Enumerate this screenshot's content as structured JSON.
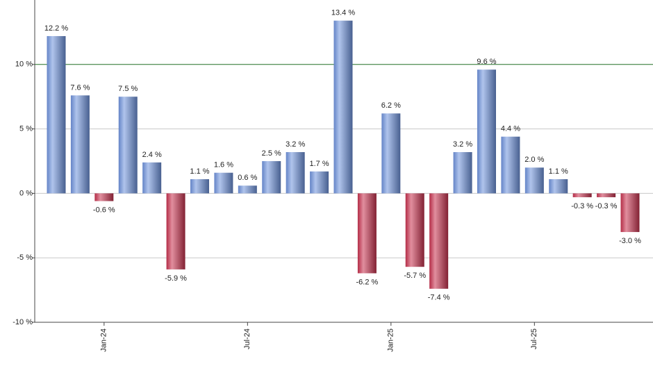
{
  "chart_data": {
    "type": "bar",
    "categories": [
      null,
      null,
      "Jan-24",
      null,
      null,
      null,
      null,
      null,
      "Jul-24",
      null,
      null,
      null,
      null,
      null,
      "Jan-25",
      null,
      null,
      null,
      null,
      null,
      "Jul-25",
      null,
      null,
      null,
      null
    ],
    "values": [
      12.2,
      7.6,
      -0.6,
      7.5,
      2.4,
      -5.9,
      1.1,
      1.6,
      0.6,
      2.5,
      3.2,
      1.7,
      13.4,
      -6.2,
      6.2,
      -5.7,
      -7.4,
      3.2,
      9.6,
      4.4,
      2.0,
      1.1,
      -0.3,
      -0.3,
      -3.0
    ],
    "value_labels": [
      "12.2 %",
      "7.6 %",
      "-0.6 %",
      "7.5 %",
      "2.4 %",
      "-5.9 %",
      "1.1 %",
      "1.6 %",
      "0.6 %",
      "2.5 %",
      "3.2 %",
      "1.7 %",
      "13.4 %",
      "-6.2 %",
      "6.2 %",
      "-5.7 %",
      "-7.4 %",
      "3.2 %",
      "9.6 %",
      "4.4 %",
      "2.0 %",
      "1.1 %",
      "-0.3 %",
      "-0.3 %",
      "-3.0 %"
    ],
    "positive_color": "#6f93dd",
    "negative_color": "#c8324f",
    "ylim": [
      -10,
      15
    ],
    "yticks": [
      {
        "value": -10,
        "label": "-10 %"
      },
      {
        "value": -5,
        "label": "-5 %"
      },
      {
        "value": 0,
        "label": "0 %"
      },
      {
        "value": 5,
        "label": "5 %"
      },
      {
        "value": 10,
        "label": "10 %"
      }
    ],
    "grid": true,
    "reference_line": {
      "value": 10,
      "color": "#2e7d32"
    }
  }
}
